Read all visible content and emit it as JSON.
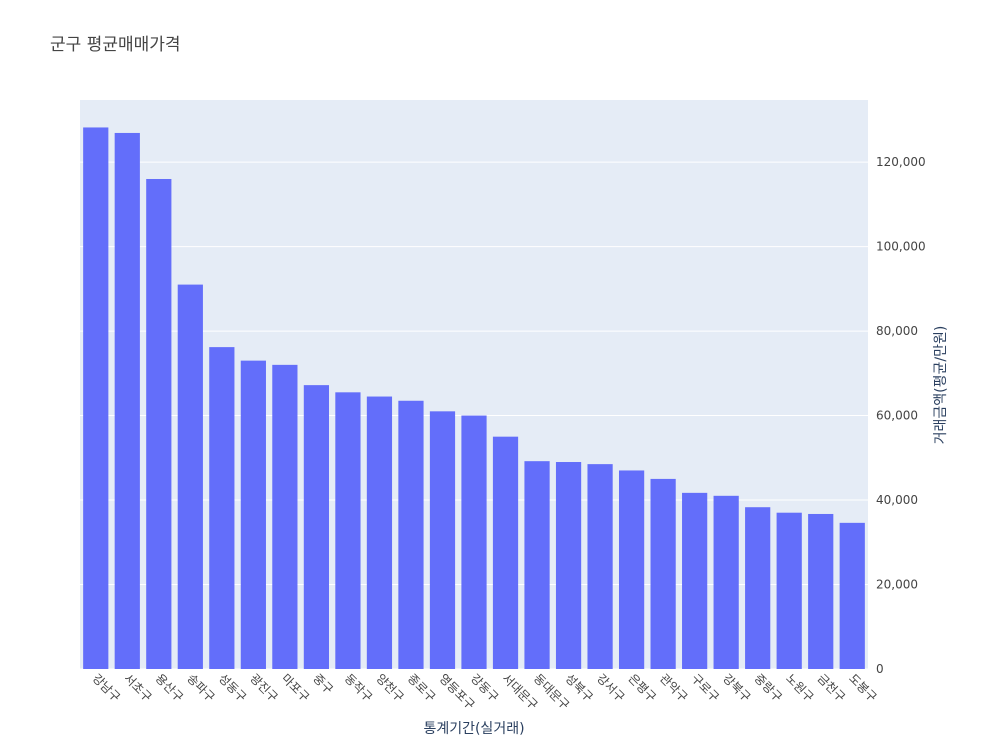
{
  "chart_data": {
    "type": "bar",
    "title": "군구 평균매매가격",
    "x_label": "통계기간(실거래)",
    "y_label": "거래금액(평균/만원)",
    "categories": [
      "강남구",
      "서초구",
      "용산구",
      "송파구",
      "성동구",
      "광진구",
      "마포구",
      "중구",
      "동작구",
      "양천구",
      "종로구",
      "영등포구",
      "강동구",
      "서대문구",
      "동대문구",
      "성북구",
      "강서구",
      "은평구",
      "관악구",
      "구로구",
      "강북구",
      "중랑구",
      "노원구",
      "금천구",
      "도봉구"
    ],
    "values": [
      128200,
      126900,
      116000,
      91000,
      76200,
      73000,
      72000,
      67200,
      65500,
      64500,
      63500,
      61000,
      60000,
      55000,
      49200,
      49000,
      48500,
      47000,
      45000,
      41700,
      41000,
      38300,
      37000,
      36700,
      34600
    ],
    "color": "#636efa",
    "ylim": [
      0,
      134700
    ],
    "yticks": [
      0,
      {
        "value": 20000,
        "label": "20,000"
      },
      {
        "value": 40000,
        "label": "40,000"
      },
      {
        "value": 60000,
        "label": "60,000"
      },
      {
        "value": 80000,
        "label": "80,000"
      },
      {
        "value": 100000,
        "label": "100,000"
      },
      {
        "value": 120000,
        "label": "120,000"
      }
    ],
    "grid": true
  }
}
